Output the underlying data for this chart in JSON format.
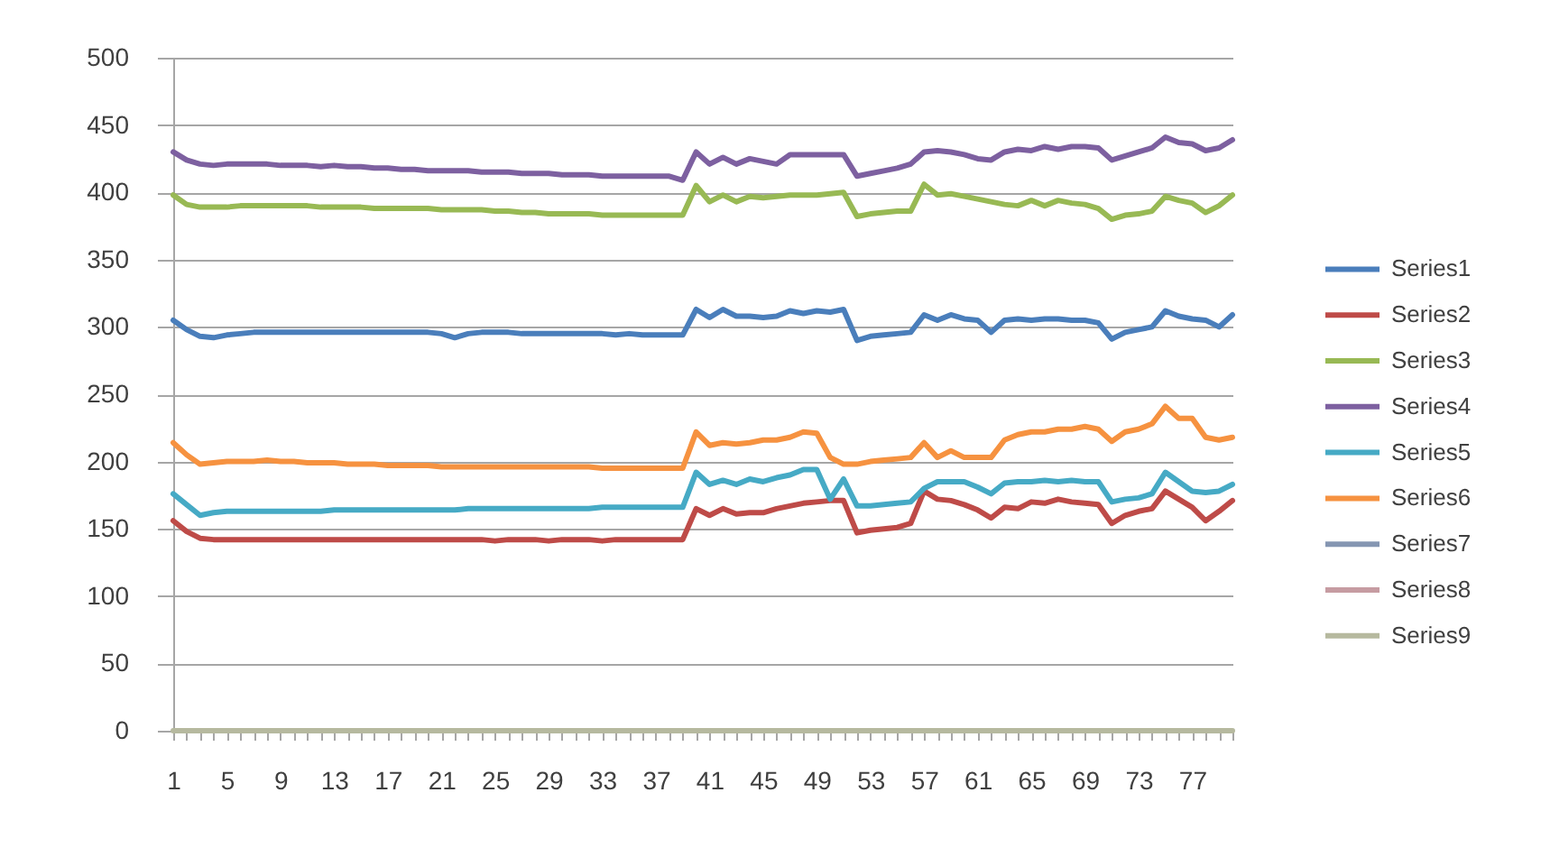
{
  "chart_data": {
    "type": "line",
    "categories": [
      "1",
      null,
      null,
      null,
      "5",
      null,
      null,
      null,
      "9",
      null,
      null,
      null,
      "13",
      null,
      null,
      null,
      "17",
      null,
      null,
      null,
      "21",
      null,
      null,
      null,
      "25",
      null,
      null,
      null,
      "29",
      null,
      null,
      null,
      "33",
      null,
      null,
      null,
      "37",
      null,
      null,
      null,
      "41",
      null,
      null,
      null,
      "45",
      null,
      null,
      null,
      "49",
      null,
      null,
      null,
      "53",
      null,
      null,
      null,
      "57",
      null,
      null,
      null,
      "61",
      null,
      null,
      null,
      "65",
      null,
      null,
      null,
      "69",
      null,
      null,
      null,
      "73",
      null,
      null,
      null,
      "77",
      null,
      null,
      null
    ],
    "series": [
      {
        "name": "Series1",
        "color": "#4a7ebb",
        "values": [
          305,
          298,
          293,
          292,
          294,
          295,
          296,
          296,
          296,
          296,
          296,
          296,
          296,
          296,
          296,
          296,
          296,
          296,
          296,
          296,
          295,
          292,
          295,
          296,
          296,
          296,
          295,
          295,
          295,
          295,
          295,
          295,
          295,
          294,
          295,
          294,
          294,
          294,
          294,
          313,
          307,
          313,
          308,
          308,
          307,
          308,
          312,
          310,
          312,
          311,
          313,
          290,
          293,
          294,
          295,
          296,
          309,
          305,
          309,
          306,
          305,
          296,
          305,
          306,
          305,
          306,
          306,
          305,
          305,
          303,
          291,
          296,
          298,
          300,
          312,
          308,
          306,
          305,
          300,
          309
        ]
      },
      {
        "name": "Series2",
        "color": "#be4b48",
        "values": [
          156,
          148,
          143,
          142,
          142,
          142,
          142,
          142,
          142,
          142,
          142,
          142,
          142,
          142,
          142,
          142,
          142,
          142,
          142,
          142,
          142,
          142,
          142,
          142,
          141,
          142,
          142,
          142,
          141,
          142,
          142,
          142,
          141,
          142,
          142,
          142,
          142,
          142,
          142,
          165,
          160,
          165,
          161,
          162,
          162,
          165,
          167,
          169,
          170,
          171,
          171,
          147,
          149,
          150,
          151,
          154,
          178,
          172,
          171,
          168,
          164,
          158,
          166,
          165,
          170,
          169,
          172,
          170,
          169,
          168,
          154,
          160,
          163,
          165,
          178,
          172,
          166,
          156,
          163,
          171
        ]
      },
      {
        "name": "Series3",
        "color": "#98b954",
        "values": [
          398,
          391,
          389,
          389,
          389,
          390,
          390,
          390,
          390,
          390,
          390,
          389,
          389,
          389,
          389,
          388,
          388,
          388,
          388,
          388,
          387,
          387,
          387,
          387,
          386,
          386,
          385,
          385,
          384,
          384,
          384,
          384,
          383,
          383,
          383,
          383,
          383,
          383,
          383,
          405,
          393,
          398,
          393,
          397,
          396,
          397,
          398,
          398,
          398,
          399,
          400,
          382,
          384,
          385,
          386,
          386,
          406,
          398,
          399,
          397,
          395,
          393,
          391,
          390,
          394,
          390,
          394,
          392,
          391,
          388,
          380,
          383,
          384,
          386,
          397,
          394,
          392,
          385,
          390,
          398
        ]
      },
      {
        "name": "Series4",
        "color": "#7d60a0",
        "values": [
          430,
          424,
          421,
          420,
          421,
          421,
          421,
          421,
          420,
          420,
          420,
          419,
          420,
          419,
          419,
          418,
          418,
          417,
          417,
          416,
          416,
          416,
          416,
          415,
          415,
          415,
          414,
          414,
          414,
          413,
          413,
          413,
          412,
          412,
          412,
          412,
          412,
          412,
          409,
          430,
          421,
          426,
          421,
          425,
          423,
          421,
          428,
          428,
          428,
          428,
          428,
          412,
          414,
          416,
          418,
          421,
          430,
          431,
          430,
          428,
          425,
          424,
          430,
          432,
          431,
          434,
          432,
          434,
          434,
          433,
          424,
          427,
          430,
          433,
          441,
          437,
          436,
          431,
          433,
          439
        ]
      },
      {
        "name": "Series5",
        "color": "#46aac5",
        "values": [
          176,
          168,
          160,
          162,
          163,
          163,
          163,
          163,
          163,
          163,
          163,
          163,
          164,
          164,
          164,
          164,
          164,
          164,
          164,
          164,
          164,
          164,
          165,
          165,
          165,
          165,
          165,
          165,
          165,
          165,
          165,
          165,
          166,
          166,
          166,
          166,
          166,
          166,
          166,
          192,
          183,
          186,
          183,
          187,
          185,
          188,
          190,
          194,
          194,
          172,
          187,
          167,
          167,
          168,
          169,
          170,
          180,
          185,
          185,
          185,
          181,
          176,
          184,
          185,
          185,
          186,
          185,
          186,
          185,
          185,
          170,
          172,
          173,
          176,
          192,
          185,
          178,
          177,
          178,
          183
        ]
      },
      {
        "name": "Series6",
        "color": "#f69240",
        "values": [
          214,
          205,
          198,
          199,
          200,
          200,
          200,
          201,
          200,
          200,
          199,
          199,
          199,
          198,
          198,
          198,
          197,
          197,
          197,
          197,
          196,
          196,
          196,
          196,
          196,
          196,
          196,
          196,
          196,
          196,
          196,
          196,
          195,
          195,
          195,
          195,
          195,
          195,
          195,
          222,
          212,
          214,
          213,
          214,
          216,
          216,
          218,
          222,
          221,
          203,
          198,
          198,
          200,
          201,
          202,
          203,
          214,
          203,
          208,
          203,
          203,
          203,
          216,
          220,
          222,
          222,
          224,
          224,
          226,
          224,
          215,
          222,
          224,
          228,
          241,
          232,
          232,
          218,
          216,
          218
        ]
      },
      {
        "name": "Series7",
        "color": "#8596b2",
        "values": [
          null,
          null,
          null,
          null,
          null,
          null,
          null,
          null,
          null,
          null,
          null,
          null,
          null,
          null,
          null,
          null,
          null,
          null,
          null,
          null,
          null,
          null,
          null,
          null,
          null,
          null,
          null,
          null,
          null,
          null,
          null,
          null,
          null,
          null,
          null,
          null,
          null,
          null,
          null,
          null,
          null,
          null,
          null,
          null,
          null,
          null,
          null,
          null,
          null,
          null,
          null,
          null,
          null,
          null,
          null,
          null,
          null,
          null,
          null,
          null,
          null,
          null,
          null,
          null,
          null,
          null,
          null,
          null,
          null,
          null,
          null,
          null,
          null,
          null,
          null,
          null,
          null,
          null,
          null,
          null
        ]
      },
      {
        "name": "Series8",
        "color": "#c69ca2",
        "values": [
          null,
          null,
          null,
          null,
          null,
          null,
          null,
          null,
          null,
          null,
          null,
          null,
          null,
          null,
          null,
          null,
          null,
          null,
          null,
          null,
          null,
          null,
          null,
          null,
          null,
          null,
          null,
          null,
          null,
          null,
          null,
          null,
          null,
          null,
          null,
          null,
          null,
          null,
          null,
          null,
          null,
          null,
          null,
          null,
          null,
          null,
          null,
          null,
          null,
          null,
          null,
          null,
          null,
          null,
          null,
          null,
          null,
          null,
          null,
          null,
          null,
          null,
          null,
          null,
          null,
          null,
          null,
          null,
          null,
          null,
          null,
          null,
          null,
          null,
          null,
          null,
          null,
          null,
          null,
          null
        ]
      },
      {
        "name": "Series9",
        "color": "#b6b99f",
        "values": [
          0,
          0,
          0,
          0,
          0,
          0,
          0,
          0,
          0,
          0,
          0,
          0,
          0,
          0,
          0,
          0,
          0,
          0,
          0,
          0,
          0,
          0,
          0,
          0,
          0,
          0,
          0,
          0,
          0,
          0,
          0,
          0,
          0,
          0,
          0,
          0,
          0,
          0,
          0,
          0,
          0,
          0,
          0,
          0,
          0,
          0,
          0,
          0,
          0,
          0,
          0,
          0,
          0,
          0,
          0,
          0,
          0,
          0,
          0,
          0,
          0,
          0,
          0,
          0,
          0,
          0,
          0,
          0,
          0,
          0,
          0,
          0,
          0,
          0,
          0,
          0,
          0,
          0,
          0,
          0
        ]
      }
    ],
    "ylim": [
      0,
      500
    ],
    "yticks": [
      0,
      50,
      100,
      150,
      200,
      250,
      300,
      350,
      400,
      450,
      500
    ],
    "grid": "y",
    "legend": "right",
    "line_style": "solid"
  }
}
